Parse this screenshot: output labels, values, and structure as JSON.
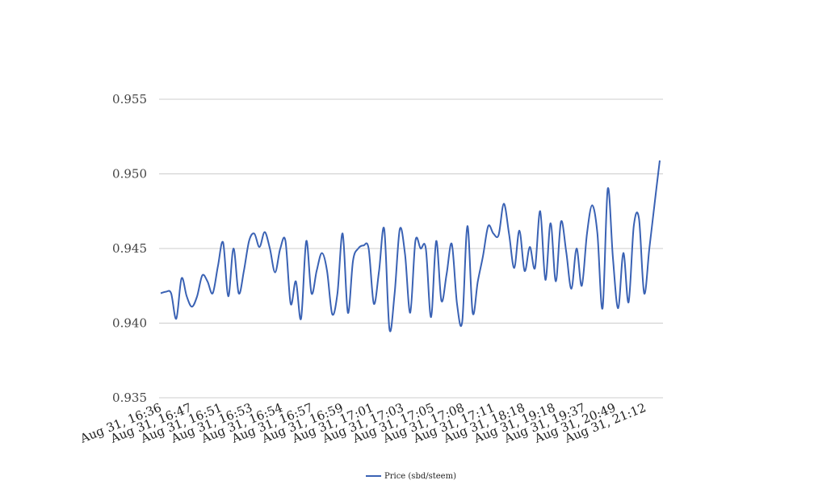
{
  "chart_data": {
    "type": "line",
    "ylim": [
      0.935,
      0.955
    ],
    "y_ticks": [
      "0.935",
      "0.940",
      "0.945",
      "0.950",
      "0.955"
    ],
    "grid": true,
    "legend_position": "bottom",
    "x_tick_labels": [
      "Aug 31, 16:36",
      "Aug 31, 16:47",
      "Aug 31, 16:51",
      "Aug 31, 16:53",
      "Aug 31, 16:54",
      "Aug 31, 16:57",
      "Aug 31, 16:59",
      "Aug 31, 17:01",
      "Aug 31, 17:03",
      "Aug 31, 17:05",
      "Aug 31, 17:08",
      "Aug 31, 17:11",
      "Aug 31, 18:18",
      "Aug 31, 19:18",
      "Aug 31, 19:37",
      "Aug 31, 20:49",
      "Aug 31, 21:12"
    ],
    "series": [
      {
        "name": "Price (sbd/steem)",
        "color": "#3a62b4",
        "values": [
          0.942,
          0.9421,
          0.942,
          0.9403,
          0.943,
          0.9418,
          0.9411,
          0.9418,
          0.9432,
          0.9428,
          0.942,
          0.9438,
          0.9454,
          0.9418,
          0.945,
          0.942,
          0.9435,
          0.9455,
          0.946,
          0.9451,
          0.9461,
          0.945,
          0.9434,
          0.945,
          0.9455,
          0.9413,
          0.9428,
          0.9403,
          0.9455,
          0.942,
          0.9435,
          0.9447,
          0.9435,
          0.9406,
          0.942,
          0.946,
          0.9407,
          0.9442,
          0.945,
          0.9452,
          0.945,
          0.9413,
          0.9435,
          0.9463,
          0.9396,
          0.942,
          0.9463,
          0.9446,
          0.9407,
          0.9455,
          0.945,
          0.945,
          0.9404,
          0.9455,
          0.9415,
          0.9433,
          0.9453,
          0.9413,
          0.9401,
          0.9465,
          0.9407,
          0.9428,
          0.9445,
          0.9465,
          0.946,
          0.9459,
          0.948,
          0.946,
          0.9437,
          0.9462,
          0.9435,
          0.9451,
          0.9437,
          0.9475,
          0.9429,
          0.9467,
          0.9428,
          0.9468,
          0.9448,
          0.9423,
          0.945,
          0.9425,
          0.946,
          0.9479,
          0.946,
          0.941,
          0.949,
          0.9443,
          0.941,
          0.9447,
          0.9414,
          0.9465,
          0.947,
          0.942,
          0.945,
          0.948,
          0.9509
        ]
      }
    ]
  }
}
